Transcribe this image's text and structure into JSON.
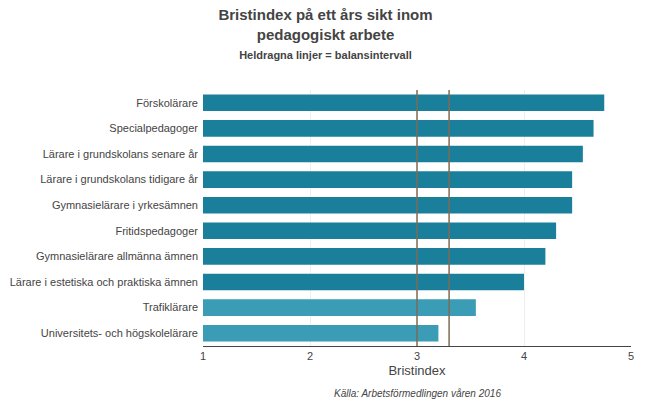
{
  "chart_data": {
    "type": "bar",
    "orientation": "horizontal",
    "title": "Bristindex på ett års sikt inom\npedagogiskt arbete",
    "subtitle": "Heldragna linjer = balansintervall",
    "source": "Källa: Arbetsförmedlingen våren 2016",
    "xlabel": "Bristindex",
    "categories": [
      "Förskolärare",
      "Specialpedagoger",
      "Lärare i grundskolans senare år",
      "Lärare i grundskolans tidigare år",
      "Gymnasielärare i yrkesämnen",
      "Fritidspedagoger",
      "Gymnasielärare allmänna ämnen",
      "Lärare i estetiska och praktiska ämnen",
      "Trafiklärare",
      "Universitets- och högskolelärare"
    ],
    "values": [
      4.75,
      4.65,
      4.55,
      4.45,
      4.45,
      4.3,
      4.2,
      4.0,
      3.55,
      3.2
    ],
    "colors": [
      "#1a7f9a",
      "#1a7f9a",
      "#1a7f9a",
      "#1a7f9a",
      "#1a7f9a",
      "#1a7f9a",
      "#1a7f9a",
      "#1a7f9a",
      "#3a9db5",
      "#3a9db5"
    ],
    "reference_lines": {
      "values": [
        3.0,
        3.3
      ],
      "color": "#7d6b57"
    },
    "xlim": [
      1,
      5
    ],
    "xticks": [
      1,
      2,
      3,
      4,
      5
    ],
    "grid": true
  }
}
